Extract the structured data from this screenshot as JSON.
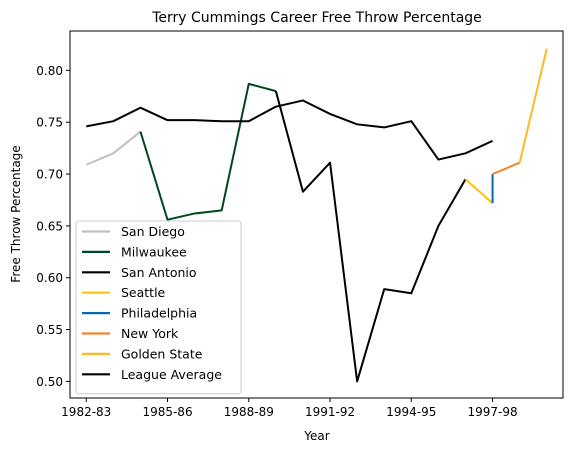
{
  "chart_data": {
    "type": "line",
    "title": "Terry Cummings Career Free Throw Percentage",
    "xlabel": "Year",
    "ylabel": "Free Throw Percentage",
    "xlim": [
      -0.6,
      17.6
    ],
    "ylim": [
      0.484,
      0.838
    ],
    "x_ticks": [
      {
        "x": 0,
        "label": "1982-83"
      },
      {
        "x": 3,
        "label": "1985-86"
      },
      {
        "x": 6,
        "label": "1988-89"
      },
      {
        "x": 9,
        "label": "1991-92"
      },
      {
        "x": 12,
        "label": "1994-95"
      },
      {
        "x": 15,
        "label": "1997-98"
      }
    ],
    "y_ticks": [
      {
        "y": 0.5,
        "label": "0.50"
      },
      {
        "y": 0.55,
        "label": "0.55"
      },
      {
        "y": 0.6,
        "label": "0.60"
      },
      {
        "y": 0.65,
        "label": "0.65"
      },
      {
        "y": 0.7,
        "label": "0.70"
      },
      {
        "y": 0.75,
        "label": "0.75"
      },
      {
        "y": 0.8,
        "label": "0.80"
      }
    ],
    "grid": false,
    "legend_position": "lower-left",
    "series": [
      {
        "name": "San Diego",
        "color": "#bfbfbf",
        "x": [
          0,
          1,
          2
        ],
        "y": [
          0.709,
          0.72,
          0.741
        ]
      },
      {
        "name": "Milwaukee",
        "color": "#00471b",
        "x": [
          2,
          3,
          4,
          5,
          6,
          7
        ],
        "y": [
          0.741,
          0.656,
          0.662,
          0.665,
          0.787,
          0.78
        ]
      },
      {
        "name": "San Antonio",
        "color": "#000000",
        "x": [
          7,
          8,
          9,
          10,
          11,
          12,
          13,
          14
        ],
        "y": [
          0.78,
          0.683,
          0.711,
          0.5,
          0.589,
          0.585,
          0.65,
          0.695
        ]
      },
      {
        "name": "Seattle",
        "color": "#ffc200",
        "x": [
          14,
          15
        ],
        "y": [
          0.695,
          0.672
        ]
      },
      {
        "name": "Philadelphia",
        "color": "#006bb6",
        "x": [
          15,
          15
        ],
        "y": [
          0.672,
          0.7
        ]
      },
      {
        "name": "New York",
        "color": "#f58426",
        "x": [
          15,
          16
        ],
        "y": [
          0.7,
          0.711
        ]
      },
      {
        "name": "Golden State",
        "color": "#fdb927",
        "x": [
          16,
          17
        ],
        "y": [
          0.711,
          0.821
        ]
      },
      {
        "name": "League Average",
        "color": "#000000",
        "x": [
          0,
          1,
          2,
          3,
          4,
          5,
          6,
          7,
          8,
          9,
          10,
          11,
          12,
          13,
          14,
          15
        ],
        "y": [
          0.746,
          0.751,
          0.764,
          0.752,
          0.752,
          0.751,
          0.751,
          0.765,
          0.771,
          0.758,
          0.748,
          0.745,
          0.751,
          0.714,
          0.72,
          0.732
        ]
      }
    ]
  }
}
